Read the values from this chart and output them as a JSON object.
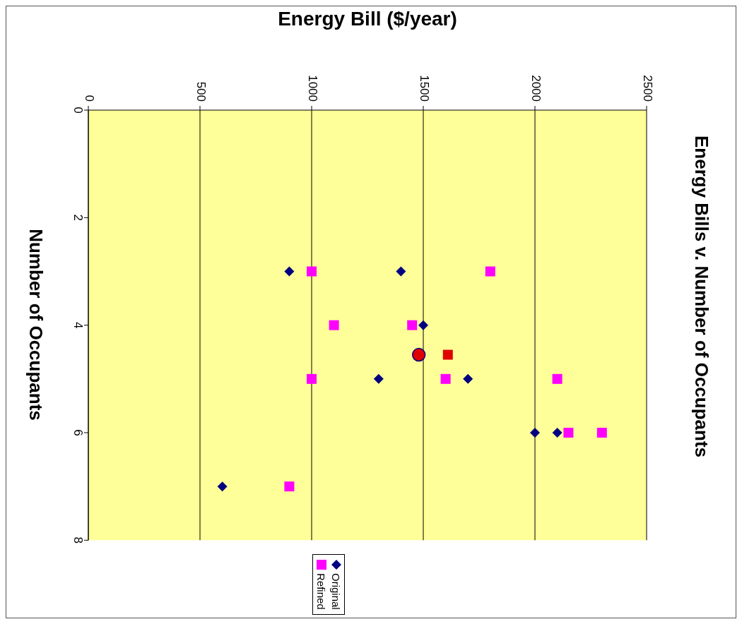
{
  "chart_data": {
    "type": "scatter",
    "title": "Energy Bills v. Number of Occupants",
    "xlabel": "Energy Bill ($/year)",
    "ylabel": "Number of Occupants",
    "xlim": [
      0,
      2500
    ],
    "xticks": [
      0,
      500,
      1000,
      1500,
      2000,
      2500
    ],
    "ylim": [
      8,
      0
    ],
    "yticks": [
      0,
      2,
      4,
      6,
      8
    ],
    "grid": "x",
    "legend": "bottom",
    "series": [
      {
        "name": "Original",
        "color": "#000080",
        "marker": "diamond",
        "x": [
          900,
          1400,
          1500,
          1300,
          1700,
          2000,
          2100,
          600
        ],
        "values": [
          3,
          3,
          4,
          5,
          5,
          6,
          6,
          7
        ]
      },
      {
        "name": "Refined",
        "color": "#ff00ff",
        "marker": "square",
        "x": [
          1000,
          1800,
          1100,
          1450,
          1000,
          1600,
          2100,
          2150,
          2300,
          900
        ],
        "values": [
          3,
          3,
          4,
          4,
          5,
          5,
          5,
          6,
          6,
          7
        ]
      },
      {
        "color": "#e00000",
        "marker": "circle",
        "x": [
          1480
        ],
        "values": [
          4.55
        ]
      },
      {
        "color": "#e00000",
        "marker": "square",
        "x": [
          1610
        ],
        "values": [
          4.55
        ]
      }
    ]
  }
}
